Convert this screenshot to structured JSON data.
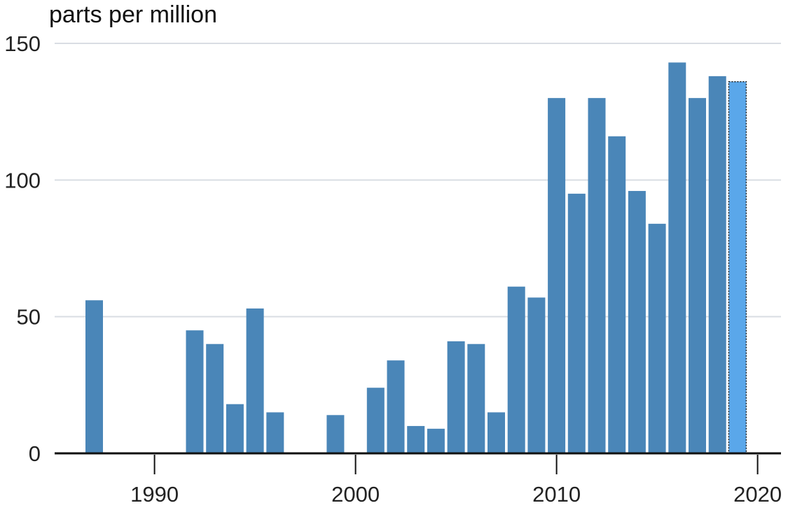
{
  "chart_data": {
    "type": "bar",
    "ylabel": "parts per million",
    "ylim": [
      0,
      150
    ],
    "yticks": [
      0,
      50,
      100,
      150
    ],
    "xlim": [
      1984.75,
      2021.25
    ],
    "xticks": [
      1990,
      2000,
      2010,
      2020
    ],
    "grid": true,
    "x": [
      1987,
      1992,
      1993,
      1994,
      1995,
      1996,
      1999,
      2001,
      2002,
      2003,
      2004,
      2005,
      2006,
      2007,
      2008,
      2009,
      2010,
      2011,
      2012,
      2013,
      2014,
      2015,
      2016,
      2017,
      2018,
      2019
    ],
    "values": [
      56,
      45,
      40,
      18,
      53,
      15,
      14,
      24,
      34,
      10,
      9,
      41,
      40,
      15,
      61,
      57,
      130,
      95,
      130,
      116,
      96,
      84,
      143,
      130,
      138,
      136
    ],
    "highlight": {
      "x": 2019,
      "style": "dotted outline"
    },
    "colors": {
      "bar": "#4a86b8",
      "highlight": "#5aa7ea",
      "grid": "#d9dde3",
      "axis": "#111111"
    }
  }
}
